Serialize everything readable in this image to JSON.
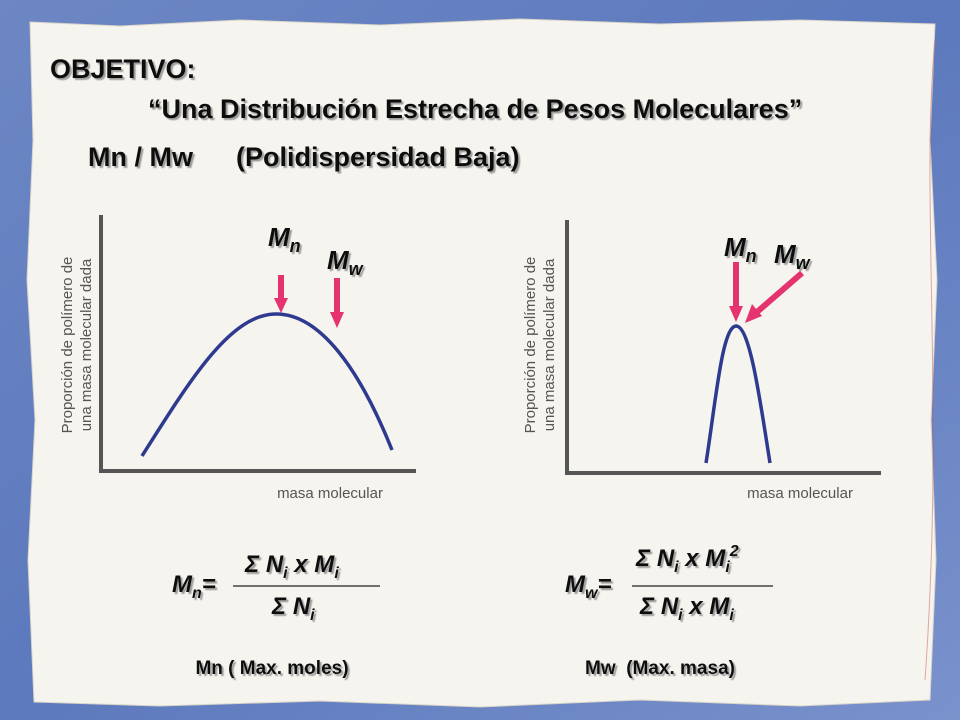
{
  "header": {
    "title": "OBJETIVO:",
    "subtitle": "“Una Distribución Estrecha de Pesos Moleculares”",
    "ratio": "Mn / Mw",
    "note": "(Polidispersidad Baja)"
  },
  "panels": [
    {
      "y_label": [
        "Proporción de polímero de",
        "una masa molecular dada"
      ],
      "x_label": "masa molecular",
      "markers": [
        {
          "base": "M",
          "sub": "n"
        },
        {
          "base": "M",
          "sub": "w"
        }
      ],
      "formula": {
        "lhs": {
          "base": "M",
          "sub": "n",
          "eq": "="
        },
        "numerator": [
          "Σ N",
          "i",
          " x M",
          "i"
        ],
        "denominator": [
          "Σ N",
          "i"
        ]
      },
      "caption": "Mn ( Max. moles)"
    },
    {
      "y_label": [
        "Proporción de polímero de",
        "una masa molecular dada"
      ],
      "x_label": "masa molecular",
      "markers": [
        {
          "base": "M",
          "sub": "n"
        },
        {
          "base": "M",
          "sub": "w"
        }
      ],
      "formula": {
        "lhs": {
          "base": "M",
          "sub": "w",
          "eq": "="
        },
        "numerator": [
          "Σ N",
          "i",
          " x M",
          "i",
          "2"
        ],
        "denominator": [
          "Σ N",
          "i",
          " x M",
          "i"
        ]
      },
      "caption": "Mw  (Max. masa)"
    }
  ]
}
